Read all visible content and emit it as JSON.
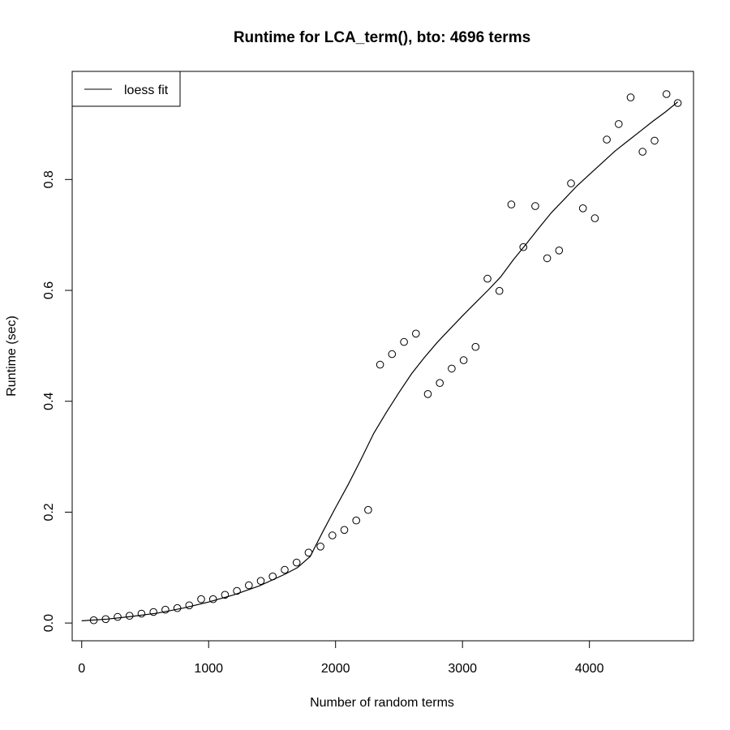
{
  "chart_data": {
    "type": "scatter",
    "title": "Runtime for LCA_term(), bto: 4696 terms",
    "xlabel": "Number of random terms",
    "ylabel": "Runtime (sec)",
    "xlim": [
      -75,
      4820
    ],
    "ylim": [
      -0.032,
      0.995
    ],
    "xticks": [
      0,
      1000,
      2000,
      3000,
      4000
    ],
    "yticks": [
      0.0,
      0.2,
      0.4,
      0.6,
      0.8
    ],
    "xtick_labels": [
      "0",
      "1000",
      "2000",
      "3000",
      "4000"
    ],
    "ytick_labels": [
      "0.0",
      "0.2",
      "0.4",
      "0.6",
      "0.8"
    ],
    "grid": false,
    "legend": {
      "position": "top-left",
      "entries": [
        {
          "label": "loess fit",
          "style": "line"
        }
      ]
    },
    "series": [
      {
        "style": "points",
        "x": [
          95,
          189,
          283,
          377,
          471,
          565,
          659,
          753,
          847,
          941,
          1035,
          1129,
          1223,
          1317,
          1411,
          1505,
          1599,
          1693,
          1787,
          1881,
          1975,
          2069,
          2163,
          2257,
          2351,
          2445,
          2539,
          2633,
          2727,
          2821,
          2915,
          3009,
          3103,
          3197,
          3291,
          3385,
          3479,
          3573,
          3667,
          3761,
          3855,
          3949,
          4043,
          4137,
          4231,
          4325,
          4419,
          4513,
          4607,
          4696
        ],
        "y": [
          0.005,
          0.007,
          0.011,
          0.013,
          0.017,
          0.02,
          0.024,
          0.027,
          0.032,
          0.043,
          0.043,
          0.051,
          0.058,
          0.068,
          0.076,
          0.084,
          0.096,
          0.109,
          0.127,
          0.138,
          0.158,
          0.168,
          0.185,
          0.204,
          0.466,
          0.485,
          0.507,
          0.522,
          0.413,
          0.433,
          0.459,
          0.474,
          0.498,
          0.621,
          0.599,
          0.755,
          0.678,
          0.752,
          0.658,
          0.672,
          0.793,
          0.748,
          0.73,
          0.872,
          0.9,
          0.948,
          0.85,
          0.87,
          0.954,
          0.938
        ]
      },
      {
        "name": "loess fit",
        "style": "line",
        "x": [
          0,
          200,
          400,
          600,
          800,
          1000,
          1200,
          1400,
          1600,
          1700,
          1800,
          1900,
          2000,
          2100,
          2200,
          2300,
          2400,
          2500,
          2600,
          2700,
          2800,
          2900,
          3000,
          3100,
          3200,
          3300,
          3400,
          3500,
          3600,
          3700,
          3800,
          3900,
          4000,
          4100,
          4200,
          4300,
          4400,
          4500,
          4600,
          4696
        ],
        "y": [
          0.004,
          0.007,
          0.012,
          0.018,
          0.027,
          0.038,
          0.051,
          0.067,
          0.088,
          0.1,
          0.12,
          0.165,
          0.208,
          0.25,
          0.295,
          0.342,
          0.38,
          0.416,
          0.45,
          0.479,
          0.506,
          0.53,
          0.554,
          0.577,
          0.6,
          0.624,
          0.655,
          0.683,
          0.712,
          0.74,
          0.764,
          0.788,
          0.809,
          0.83,
          0.851,
          0.869,
          0.887,
          0.905,
          0.922,
          0.94
        ]
      }
    ]
  }
}
